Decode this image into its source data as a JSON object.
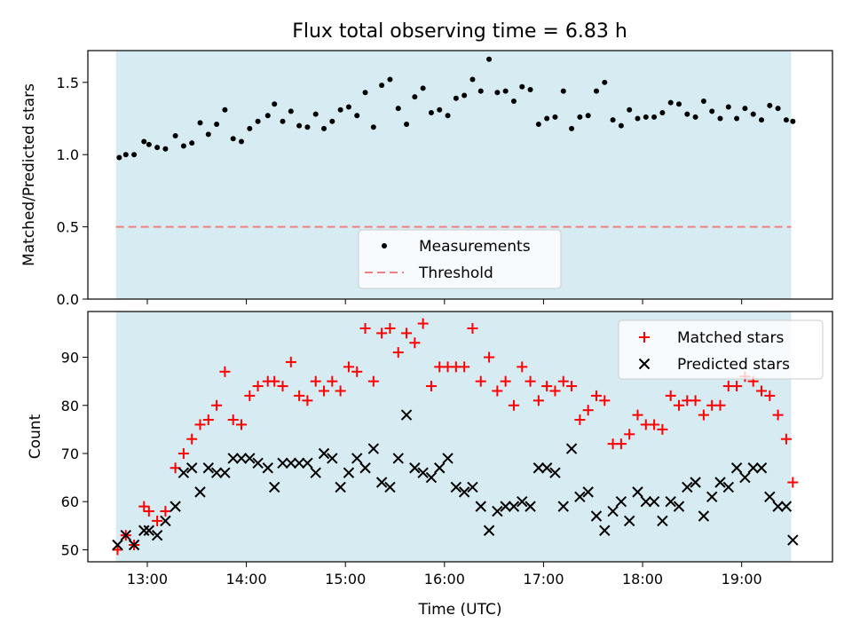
{
  "chart_data": [
    {
      "type": "scatter",
      "title": "Flux total observing time = 6.83 h",
      "xlabel": "",
      "ylabel": "Matched/Predicted stars",
      "xlim": [
        "12:24",
        "19:55"
      ],
      "ylim": [
        0,
        1.72
      ],
      "x_ticks": [
        "13:00",
        "14:00",
        "15:00",
        "16:00",
        "17:00",
        "18:00",
        "19:00"
      ],
      "y_ticks": [
        "0.0",
        "0.5",
        "1.0",
        "1.5"
      ],
      "shaded_span": [
        "12:41",
        "19:30"
      ],
      "shade_color": "#add8e6",
      "legend_position": "lower-center",
      "series": [
        {
          "name": "Measurements",
          "marker": "dot",
          "color": "#000000",
          "points": [
            [
              "12:43",
              0.98
            ],
            [
              "12:47",
              1.0
            ],
            [
              "12:52",
              1.0
            ],
            [
              "12:58",
              1.09
            ],
            [
              "13:01",
              1.07
            ],
            [
              "13:06",
              1.05
            ],
            [
              "13:11",
              1.04
            ],
            [
              "13:17",
              1.13
            ],
            [
              "13:22",
              1.06
            ],
            [
              "13:27",
              1.08
            ],
            [
              "13:32",
              1.22
            ],
            [
              "13:37",
              1.14
            ],
            [
              "13:42",
              1.21
            ],
            [
              "13:47",
              1.31
            ],
            [
              "13:52",
              1.11
            ],
            [
              "13:57",
              1.09
            ],
            [
              "14:02",
              1.18
            ],
            [
              "14:07",
              1.23
            ],
            [
              "14:13",
              1.27
            ],
            [
              "14:17",
              1.35
            ],
            [
              "14:22",
              1.23
            ],
            [
              "14:27",
              1.3
            ],
            [
              "14:32",
              1.2
            ],
            [
              "14:37",
              1.19
            ],
            [
              "14:42",
              1.28
            ],
            [
              "14:47",
              1.18
            ],
            [
              "14:52",
              1.23
            ],
            [
              "14:57",
              1.31
            ],
            [
              "15:02",
              1.33
            ],
            [
              "15:07",
              1.27
            ],
            [
              "15:12",
              1.43
            ],
            [
              "15:17",
              1.19
            ],
            [
              "15:22",
              1.48
            ],
            [
              "15:27",
              1.52
            ],
            [
              "15:32",
              1.32
            ],
            [
              "15:37",
              1.21
            ],
            [
              "15:42",
              1.4
            ],
            [
              "15:47",
              1.46
            ],
            [
              "15:52",
              1.29
            ],
            [
              "15:57",
              1.31
            ],
            [
              "16:02",
              1.27
            ],
            [
              "16:07",
              1.39
            ],
            [
              "16:12",
              1.41
            ],
            [
              "16:17",
              1.52
            ],
            [
              "16:22",
              1.44
            ],
            [
              "16:27",
              1.66
            ],
            [
              "16:32",
              1.43
            ],
            [
              "16:37",
              1.44
            ],
            [
              "16:42",
              1.37
            ],
            [
              "16:47",
              1.47
            ],
            [
              "16:52",
              1.45
            ],
            [
              "16:57",
              1.21
            ],
            [
              "17:02",
              1.25
            ],
            [
              "17:07",
              1.26
            ],
            [
              "17:12",
              1.44
            ],
            [
              "17:17",
              1.18
            ],
            [
              "17:22",
              1.26
            ],
            [
              "17:27",
              1.27
            ],
            [
              "17:32",
              1.44
            ],
            [
              "17:37",
              1.5
            ],
            [
              "17:42",
              1.24
            ],
            [
              "17:47",
              1.2
            ],
            [
              "17:52",
              1.31
            ],
            [
              "17:57",
              1.25
            ],
            [
              "18:02",
              1.26
            ],
            [
              "18:07",
              1.26
            ],
            [
              "18:12",
              1.29
            ],
            [
              "18:17",
              1.36
            ],
            [
              "18:22",
              1.35
            ],
            [
              "18:27",
              1.28
            ],
            [
              "18:32",
              1.26
            ],
            [
              "18:37",
              1.37
            ],
            [
              "18:42",
              1.3
            ],
            [
              "18:47",
              1.25
            ],
            [
              "18:52",
              1.33
            ],
            [
              "18:57",
              1.25
            ],
            [
              "19:02",
              1.32
            ],
            [
              "19:07",
              1.28
            ],
            [
              "19:12",
              1.24
            ],
            [
              "19:17",
              1.34
            ],
            [
              "19:22",
              1.32
            ],
            [
              "19:27",
              1.24
            ],
            [
              "19:31",
              1.23
            ]
          ]
        },
        {
          "name": "Threshold",
          "marker": "dashed-line",
          "color": "#f08080",
          "value": 0.5,
          "x": [
            "12:41",
            "19:30"
          ]
        }
      ]
    },
    {
      "type": "scatter",
      "title": "",
      "xlabel": "Time (UTC)",
      "ylabel": "Count",
      "xlim": [
        "12:24",
        "19:55"
      ],
      "ylim": [
        47.5,
        99.5
      ],
      "x_ticks": [
        "13:00",
        "14:00",
        "15:00",
        "16:00",
        "17:00",
        "18:00",
        "19:00"
      ],
      "y_ticks": [
        "50",
        "60",
        "70",
        "80",
        "90"
      ],
      "shaded_span": [
        "12:41",
        "19:30"
      ],
      "shade_color": "#add8e6",
      "legend_position": "top-right",
      "series": [
        {
          "name": "Matched stars",
          "marker": "plus",
          "color": "#ff0000",
          "points": [
            [
              "12:42",
              50
            ],
            [
              "12:47",
              53
            ],
            [
              "12:52",
              51
            ],
            [
              "12:58",
              59
            ],
            [
              "13:01",
              58
            ],
            [
              "13:06",
              56
            ],
            [
              "13:11",
              58
            ],
            [
              "13:17",
              67
            ],
            [
              "13:22",
              70
            ],
            [
              "13:27",
              73
            ],
            [
              "13:32",
              76
            ],
            [
              "13:37",
              77
            ],
            [
              "13:42",
              80
            ],
            [
              "13:47",
              87
            ],
            [
              "13:52",
              77
            ],
            [
              "13:57",
              76
            ],
            [
              "14:02",
              82
            ],
            [
              "14:07",
              84
            ],
            [
              "14:13",
              85
            ],
            [
              "14:17",
              85
            ],
            [
              "14:22",
              84
            ],
            [
              "14:27",
              89
            ],
            [
              "14:32",
              82
            ],
            [
              "14:37",
              81
            ],
            [
              "14:42",
              85
            ],
            [
              "14:47",
              83
            ],
            [
              "14:52",
              85
            ],
            [
              "14:57",
              83
            ],
            [
              "15:02",
              88
            ],
            [
              "15:07",
              87
            ],
            [
              "15:12",
              96
            ],
            [
              "15:17",
              85
            ],
            [
              "15:22",
              95
            ],
            [
              "15:27",
              96
            ],
            [
              "15:32",
              91
            ],
            [
              "15:37",
              95
            ],
            [
              "15:42",
              93
            ],
            [
              "15:47",
              97
            ],
            [
              "15:52",
              84
            ],
            [
              "15:57",
              88
            ],
            [
              "16:02",
              88
            ],
            [
              "16:07",
              88
            ],
            [
              "16:12",
              88
            ],
            [
              "16:17",
              96
            ],
            [
              "16:22",
              85
            ],
            [
              "16:27",
              90
            ],
            [
              "16:32",
              83
            ],
            [
              "16:37",
              85
            ],
            [
              "16:42",
              80
            ],
            [
              "16:47",
              88
            ],
            [
              "16:52",
              85
            ],
            [
              "16:57",
              81
            ],
            [
              "17:02",
              84
            ],
            [
              "17:07",
              83
            ],
            [
              "17:12",
              85
            ],
            [
              "17:17",
              84
            ],
            [
              "17:22",
              77
            ],
            [
              "17:27",
              79
            ],
            [
              "17:32",
              82
            ],
            [
              "17:37",
              81
            ],
            [
              "17:42",
              72
            ],
            [
              "17:47",
              72
            ],
            [
              "17:52",
              74
            ],
            [
              "17:57",
              78
            ],
            [
              "18:02",
              76
            ],
            [
              "18:07",
              76
            ],
            [
              "18:12",
              75
            ],
            [
              "18:17",
              82
            ],
            [
              "18:22",
              80
            ],
            [
              "18:27",
              81
            ],
            [
              "18:32",
              81
            ],
            [
              "18:37",
              78
            ],
            [
              "18:42",
              80
            ],
            [
              "18:47",
              80
            ],
            [
              "18:52",
              84
            ],
            [
              "18:57",
              84
            ],
            [
              "19:02",
              86
            ],
            [
              "19:07",
              85
            ],
            [
              "19:12",
              83
            ],
            [
              "19:17",
              82
            ],
            [
              "19:22",
              78
            ],
            [
              "19:27",
              73
            ],
            [
              "19:31",
              64
            ]
          ]
        },
        {
          "name": "Predicted stars",
          "marker": "x",
          "color": "#000000",
          "points": [
            [
              "12:42",
              51
            ],
            [
              "12:47",
              53
            ],
            [
              "12:52",
              51
            ],
            [
              "12:58",
              54
            ],
            [
              "13:01",
              54
            ],
            [
              "13:06",
              53
            ],
            [
              "13:11",
              56
            ],
            [
              "13:17",
              59
            ],
            [
              "13:22",
              66
            ],
            [
              "13:27",
              67
            ],
            [
              "13:32",
              62
            ],
            [
              "13:37",
              67
            ],
            [
              "13:42",
              66
            ],
            [
              "13:47",
              66
            ],
            [
              "13:52",
              69
            ],
            [
              "13:57",
              69
            ],
            [
              "14:02",
              69
            ],
            [
              "14:07",
              68
            ],
            [
              "14:13",
              67
            ],
            [
              "14:17",
              63
            ],
            [
              "14:22",
              68
            ],
            [
              "14:27",
              68
            ],
            [
              "14:32",
              68
            ],
            [
              "14:37",
              68
            ],
            [
              "14:42",
              66
            ],
            [
              "14:47",
              70
            ],
            [
              "14:52",
              69
            ],
            [
              "14:57",
              63
            ],
            [
              "15:02",
              66
            ],
            [
              "15:07",
              69
            ],
            [
              "15:12",
              67
            ],
            [
              "15:17",
              71
            ],
            [
              "15:22",
              64
            ],
            [
              "15:27",
              63
            ],
            [
              "15:32",
              69
            ],
            [
              "15:37",
              78
            ],
            [
              "15:42",
              67
            ],
            [
              "15:47",
              66
            ],
            [
              "15:52",
              65
            ],
            [
              "15:57",
              67
            ],
            [
              "16:02",
              69
            ],
            [
              "16:07",
              63
            ],
            [
              "16:12",
              62
            ],
            [
              "16:17",
              63
            ],
            [
              "16:22",
              59
            ],
            [
              "16:27",
              54
            ],
            [
              "16:32",
              58
            ],
            [
              "16:37",
              59
            ],
            [
              "16:42",
              59
            ],
            [
              "16:47",
              60
            ],
            [
              "16:52",
              59
            ],
            [
              "16:57",
              67
            ],
            [
              "17:02",
              67
            ],
            [
              "17:07",
              66
            ],
            [
              "17:12",
              59
            ],
            [
              "17:17",
              71
            ],
            [
              "17:22",
              61
            ],
            [
              "17:27",
              62
            ],
            [
              "17:32",
              57
            ],
            [
              "17:37",
              54
            ],
            [
              "17:42",
              58
            ],
            [
              "17:47",
              60
            ],
            [
              "17:52",
              56
            ],
            [
              "17:57",
              62
            ],
            [
              "18:02",
              60
            ],
            [
              "18:07",
              60
            ],
            [
              "18:12",
              56
            ],
            [
              "18:17",
              60
            ],
            [
              "18:22",
              59
            ],
            [
              "18:27",
              63
            ],
            [
              "18:32",
              64
            ],
            [
              "18:37",
              57
            ],
            [
              "18:42",
              61
            ],
            [
              "18:47",
              64
            ],
            [
              "18:52",
              63
            ],
            [
              "18:57",
              67
            ],
            [
              "19:02",
              65
            ],
            [
              "19:07",
              67
            ],
            [
              "19:12",
              67
            ],
            [
              "19:17",
              61
            ],
            [
              "19:22",
              59
            ],
            [
              "19:27",
              59
            ],
            [
              "19:31",
              52
            ]
          ]
        }
      ]
    }
  ]
}
